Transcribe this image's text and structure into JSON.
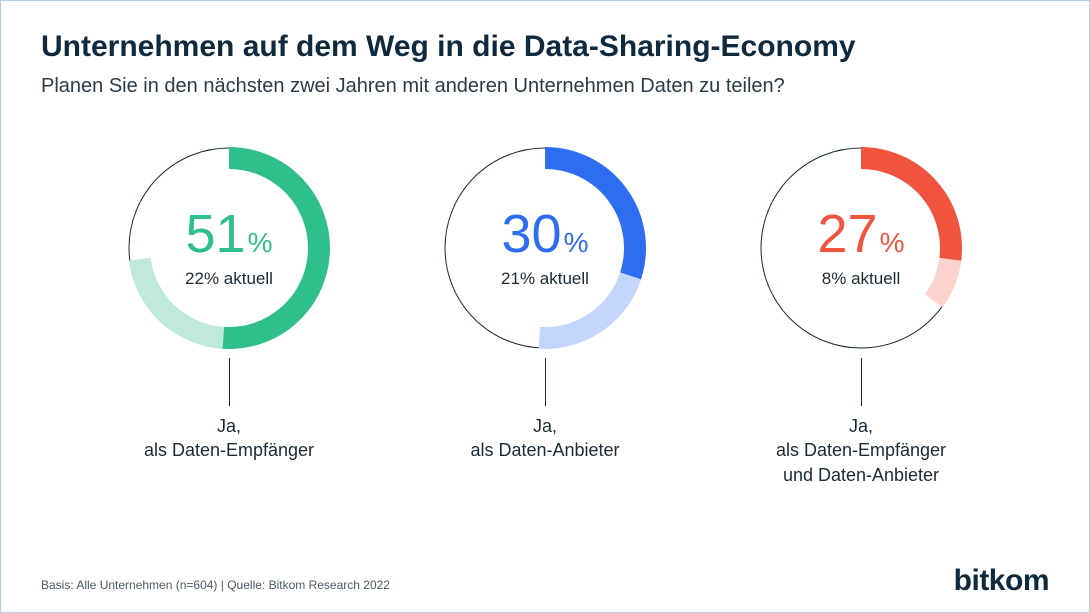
{
  "header": {
    "title": "Unternehmen auf dem Weg in die Data-Sharing-Economy",
    "subtitle": "Planen Sie in den nächsten zwei Jahren mit anderen Unternehmen Daten zu teilen?"
  },
  "chart": {
    "type": "donut-progress",
    "ring_radius": 100,
    "ring_stroke_full": 22,
    "ring_stroke_light": 22,
    "outline_color": "#1a2a36",
    "outline_width": 1,
    "background_color": "#ffffff",
    "text_color": "#1a2a36",
    "title_fontsize": 30,
    "subtitle_fontsize": 20,
    "big_value_fontsize": 54,
    "big_pct_fontsize": 28,
    "sub_label_fontsize": 17,
    "category_label_fontsize": 18,
    "items": [
      {
        "planned_pct": 51,
        "current_pct": 22,
        "sub_label": "22% aktuell",
        "category_label": "Ja,\nals Daten-Empfänger",
        "color": "#2fbf8a",
        "color_light": "#bfeadb"
      },
      {
        "planned_pct": 30,
        "current_pct": 21,
        "sub_label": "21% aktuell",
        "category_label": "Ja,\nals Daten-Anbieter",
        "color": "#2e6df0",
        "color_light": "#c4d6fb"
      },
      {
        "planned_pct": 27,
        "current_pct": 8,
        "sub_label": "8% aktuell",
        "category_label": "Ja,\nals Daten-Empfänger\nund Daten-Anbieter",
        "color": "#f0543f",
        "color_light": "#fbd2cc"
      }
    ]
  },
  "footer": {
    "note": "Basis: Alle Unternehmen (n=604) | Quelle: Bitkom Research 2022",
    "logo_text": "bitkom"
  }
}
